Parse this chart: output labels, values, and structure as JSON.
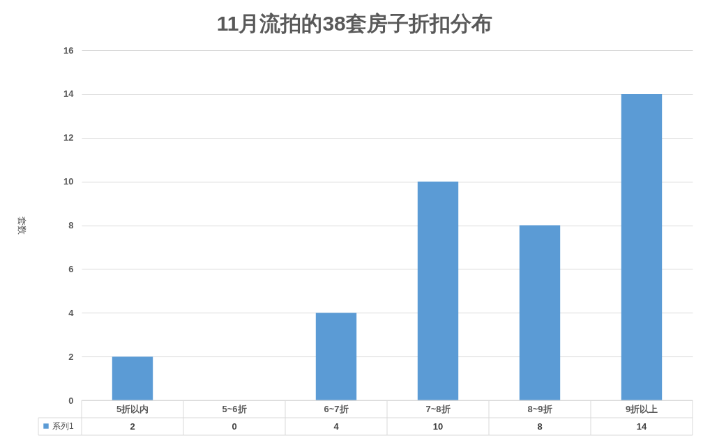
{
  "chart_data": {
    "type": "bar",
    "title": "11月流拍的38套房子折扣分布",
    "ylabel": "套数",
    "categories": [
      "5折以内",
      "5~6折",
      "6~7折",
      "7~8折",
      "8~9折",
      "9折以上"
    ],
    "series": [
      {
        "name": "系列1",
        "color": "#5b9bd5",
        "values": [
          2,
          0,
          4,
          10,
          8,
          14
        ]
      }
    ],
    "ylim": [
      0,
      16
    ],
    "yticks": [
      0,
      2,
      4,
      6,
      8,
      10,
      12,
      14,
      16
    ],
    "grid": "y",
    "legend": "bottom left",
    "data_labels": true
  }
}
